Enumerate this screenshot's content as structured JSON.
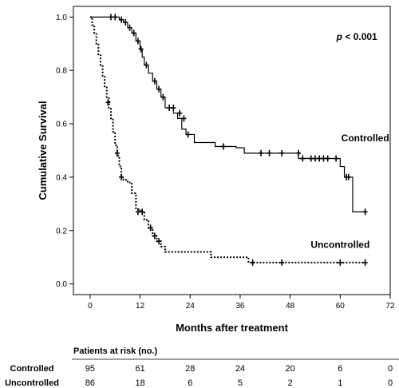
{
  "chart_data": {
    "type": "line",
    "subtype": "kaplan-meier",
    "xlabel": "Months after treatment",
    "ylabel": "Cumulative Survival",
    "xlim": [
      -4,
      72
    ],
    "ylim": [
      -0.04,
      1.04
    ],
    "xticks": [
      0,
      12,
      24,
      36,
      48,
      60,
      72
    ],
    "yticks": [
      0.0,
      0.2,
      0.4,
      0.6,
      0.8,
      1.0
    ],
    "xtick_labels": [
      "0",
      "12",
      "24",
      "36",
      "48",
      "60",
      "72"
    ],
    "ytick_labels": [
      "0.0",
      "0.2",
      "0.4",
      "0.6",
      "0.8",
      "1.0"
    ],
    "grid": false,
    "legend": "none",
    "annotations": [
      {
        "text_prefix": "p",
        "text_rest": " < 0.001",
        "x": 64,
        "y": 0.915
      },
      {
        "text": "Controlled",
        "x": 66,
        "y": 0.535
      },
      {
        "text": "Uncontrolled",
        "x": 60,
        "y": 0.135
      }
    ],
    "series": [
      {
        "name": "Controlled",
        "line_style": "solid",
        "color": "#000000",
        "steps": [
          [
            0,
            1.0
          ],
          [
            7,
            0.99
          ],
          [
            8,
            0.98
          ],
          [
            9,
            0.96
          ],
          [
            10,
            0.94
          ],
          [
            11,
            0.91
          ],
          [
            12,
            0.88
          ],
          [
            12.5,
            0.85
          ],
          [
            13,
            0.82
          ],
          [
            14,
            0.79
          ],
          [
            15,
            0.76
          ],
          [
            16,
            0.73
          ],
          [
            17,
            0.7
          ],
          [
            18,
            0.66
          ],
          [
            20,
            0.64
          ],
          [
            21,
            0.62
          ],
          [
            22,
            0.58
          ],
          [
            23,
            0.56
          ],
          [
            25,
            0.53
          ],
          [
            30,
            0.515
          ],
          [
            35,
            0.51
          ],
          [
            37,
            0.49
          ],
          [
            50,
            0.47
          ],
          [
            60,
            0.44
          ],
          [
            61,
            0.4
          ],
          [
            63,
            0.27
          ],
          [
            66,
            0.27
          ]
        ],
        "censored": [
          [
            5,
            1.0
          ],
          [
            6,
            1.0
          ],
          [
            7.5,
            0.99
          ],
          [
            8.5,
            0.98
          ],
          [
            9.5,
            0.96
          ],
          [
            10.5,
            0.94
          ],
          [
            11.5,
            0.91
          ],
          [
            12.2,
            0.88
          ],
          [
            13.5,
            0.82
          ],
          [
            15.5,
            0.76
          ],
          [
            16.5,
            0.73
          ],
          [
            17.5,
            0.7
          ],
          [
            19,
            0.66
          ],
          [
            20,
            0.66
          ],
          [
            21.5,
            0.64
          ],
          [
            22.5,
            0.62
          ],
          [
            23.5,
            0.56
          ],
          [
            32,
            0.515
          ],
          [
            41,
            0.49
          ],
          [
            43,
            0.49
          ],
          [
            46,
            0.49
          ],
          [
            50,
            0.49
          ],
          [
            51,
            0.47
          ],
          [
            53,
            0.47
          ],
          [
            54,
            0.47
          ],
          [
            55,
            0.47
          ],
          [
            56,
            0.47
          ],
          [
            57,
            0.47
          ],
          [
            59,
            0.47
          ],
          [
            61.5,
            0.4
          ],
          [
            62,
            0.4
          ],
          [
            66,
            0.27
          ]
        ]
      },
      {
        "name": "Uncontrolled",
        "line_style": "dotted",
        "color": "#000000",
        "steps": [
          [
            0,
            1.0
          ],
          [
            0.5,
            0.97
          ],
          [
            1,
            0.94
          ],
          [
            1.5,
            0.9
          ],
          [
            2,
            0.86
          ],
          [
            2.5,
            0.82
          ],
          [
            3,
            0.78
          ],
          [
            3.5,
            0.74
          ],
          [
            4,
            0.7
          ],
          [
            4.5,
            0.66
          ],
          [
            5,
            0.62
          ],
          [
            5.5,
            0.57
          ],
          [
            6,
            0.52
          ],
          [
            6.5,
            0.48
          ],
          [
            7,
            0.44
          ],
          [
            7.5,
            0.4
          ],
          [
            8,
            0.39
          ],
          [
            9,
            0.38
          ],
          [
            10,
            0.34
          ],
          [
            11,
            0.28
          ],
          [
            12,
            0.27
          ],
          [
            13,
            0.24
          ],
          [
            14,
            0.21
          ],
          [
            15,
            0.18
          ],
          [
            16,
            0.16
          ],
          [
            17,
            0.14
          ],
          [
            18,
            0.12
          ],
          [
            29,
            0.1
          ],
          [
            38,
            0.08
          ],
          [
            66,
            0.08
          ]
        ],
        "censored": [
          [
            4.3,
            0.68
          ],
          [
            6.5,
            0.49
          ],
          [
            7.5,
            0.4
          ],
          [
            11.5,
            0.27
          ],
          [
            12.5,
            0.27
          ],
          [
            14.5,
            0.21
          ],
          [
            15.5,
            0.18
          ],
          [
            16.5,
            0.16
          ],
          [
            39,
            0.08
          ],
          [
            46,
            0.08
          ],
          [
            60,
            0.08
          ],
          [
            66,
            0.08
          ]
        ]
      }
    ],
    "risk_table": {
      "title": "Patients at risk (no.)",
      "rows": [
        {
          "label": "Controlled",
          "values": [
            "95",
            "61",
            "28",
            "24",
            "20",
            "6",
            "0"
          ]
        },
        {
          "label": "Uncontrolled",
          "values": [
            "86",
            "18",
            "6",
            "5",
            "2",
            "1",
            "0"
          ]
        }
      ]
    }
  }
}
